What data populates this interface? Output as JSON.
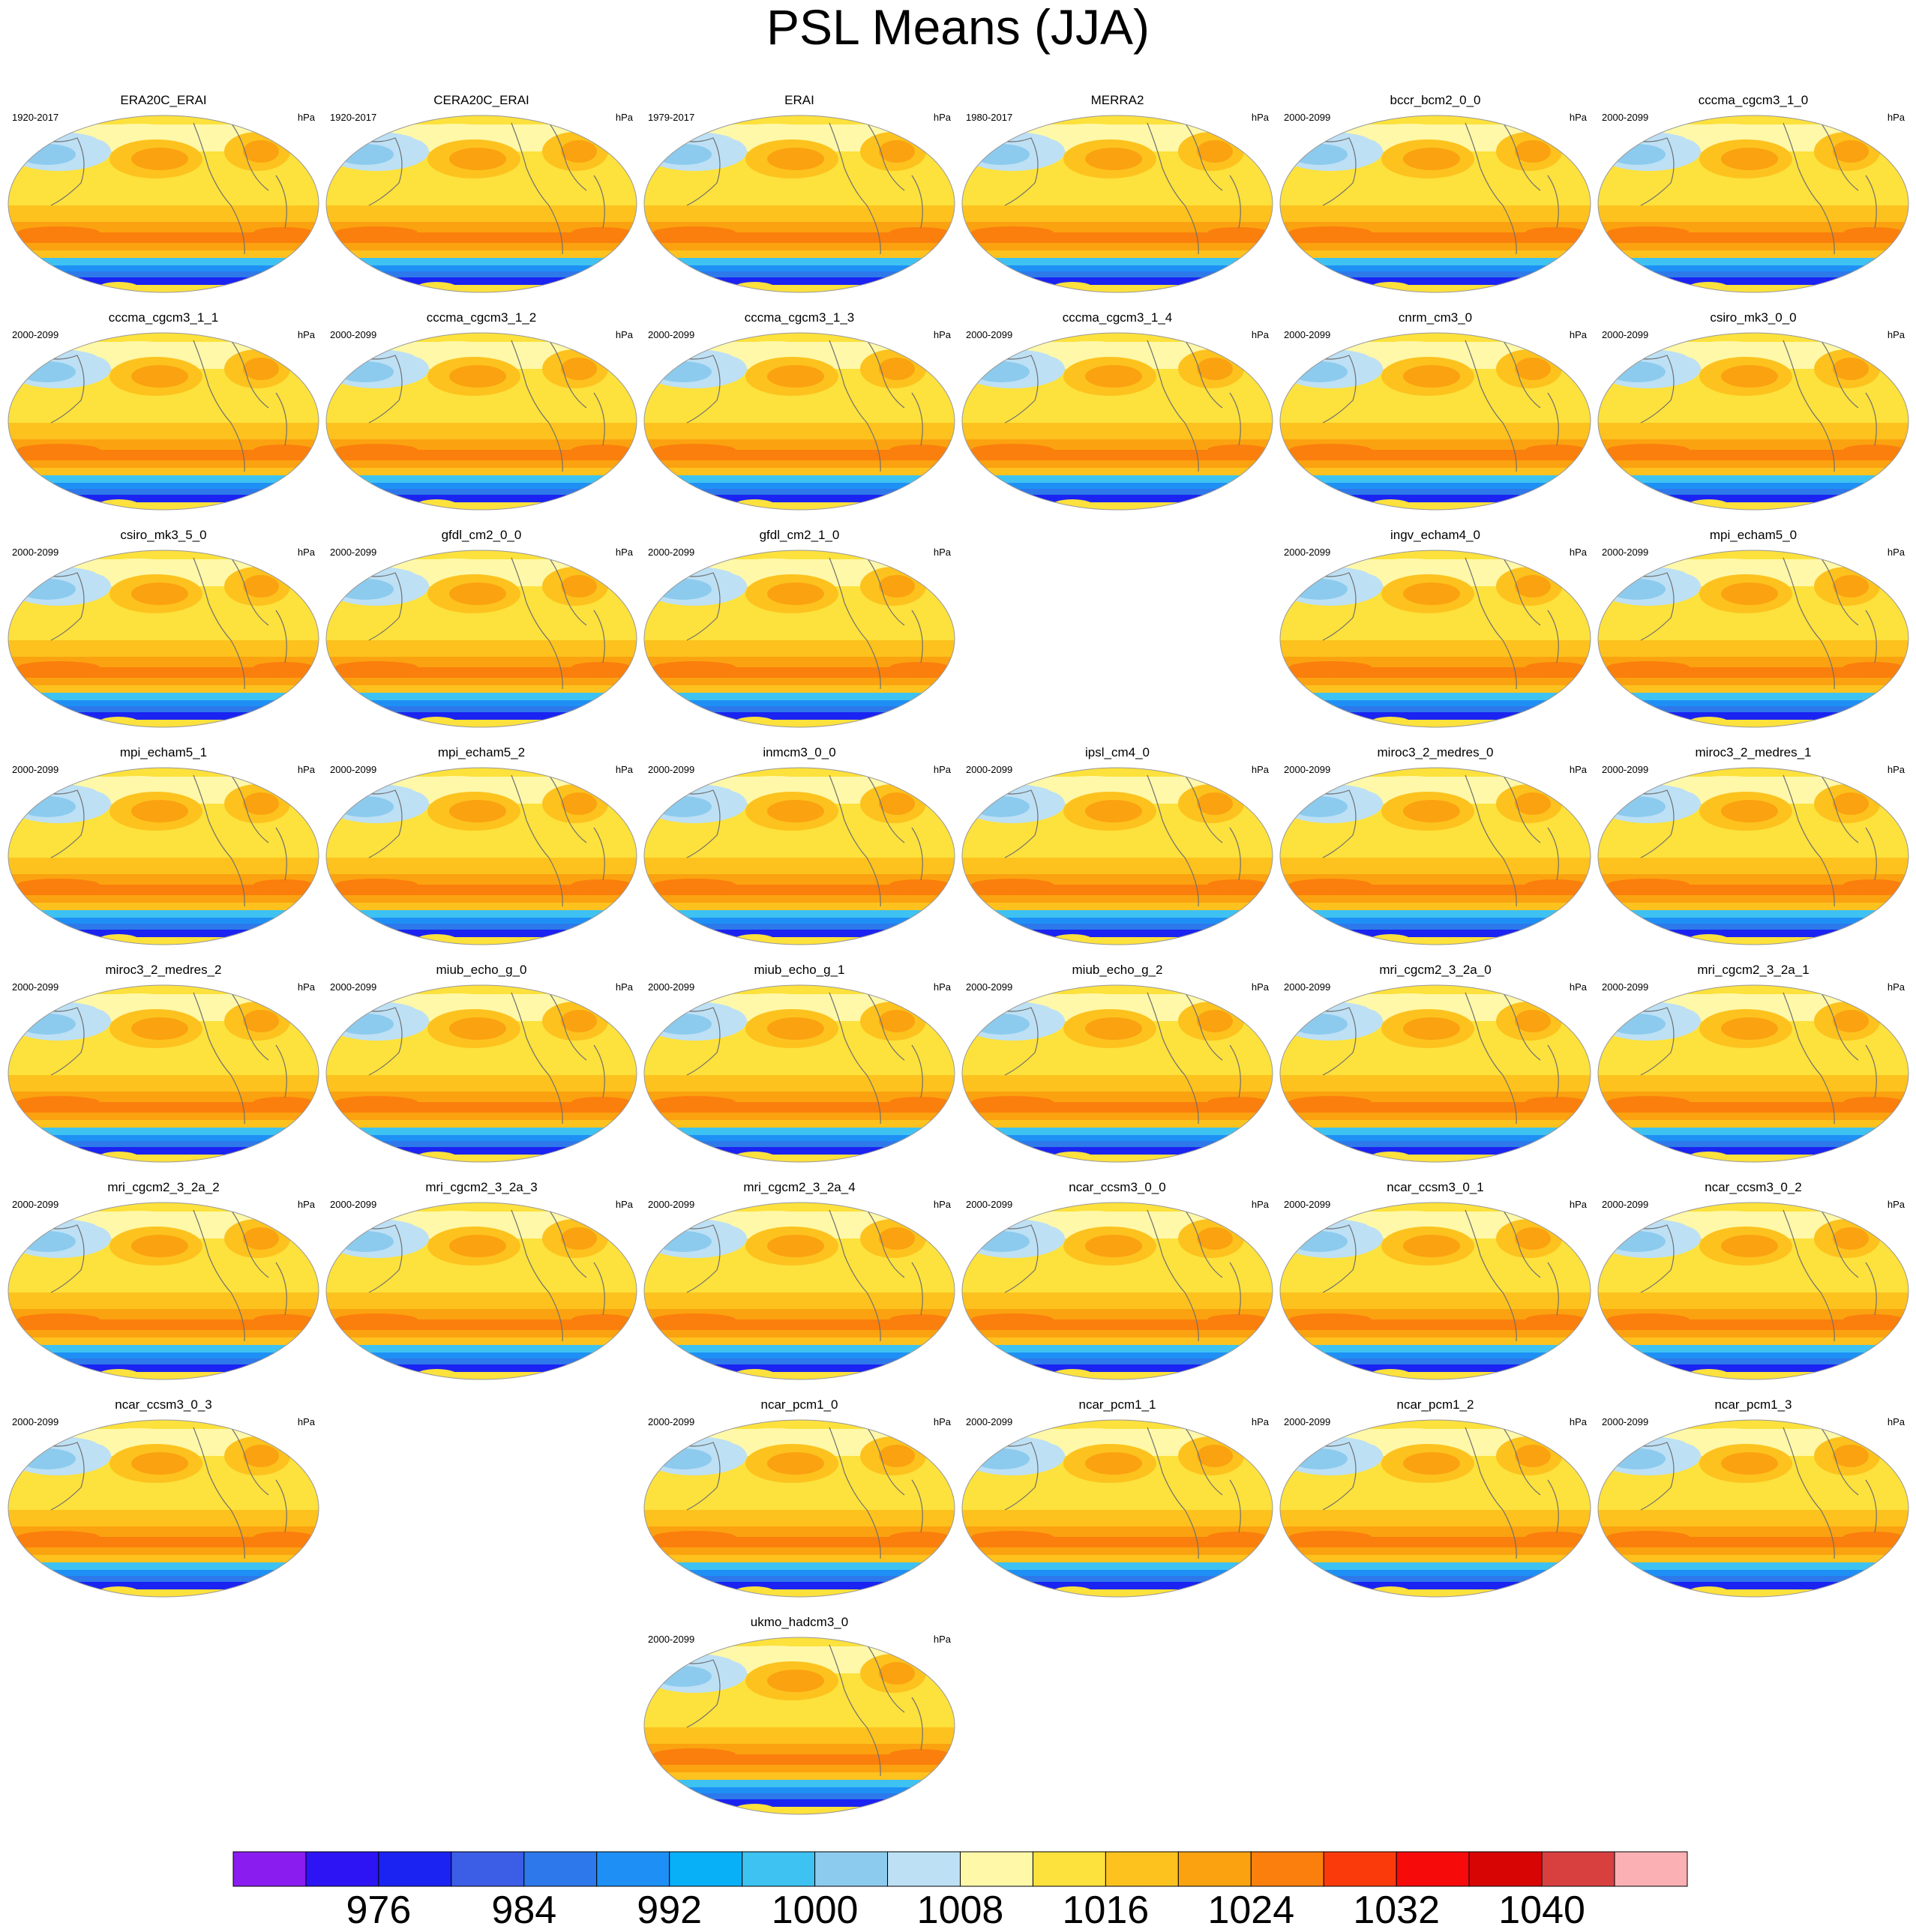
{
  "title": "PSL Means (JJA)",
  "units": "hPa",
  "colorbar": {
    "colors": [
      "#8a1cf0",
      "#2c14f5",
      "#1a23f2",
      "#3c5de6",
      "#2d78ea",
      "#1e90f5",
      "#08b0f7",
      "#3ec2f2",
      "#8ccbee",
      "#bde0f5",
      "#fff8a8",
      "#fde13c",
      "#fdc21e",
      "#fba210",
      "#fb7f0c",
      "#fb3a0c",
      "#f60a0a",
      "#d80505",
      "#d84040",
      "#fbb0b4"
    ],
    "labels": [
      "976",
      "984",
      "992",
      "1000",
      "1008",
      "1016",
      "1024",
      "1032",
      "1040"
    ]
  },
  "panels": [
    {
      "name": "ERA20C_ERAI",
      "years": "1920-2017",
      "units": "hPa",
      "row": 0,
      "col": 0
    },
    {
      "name": "CERA20C_ERAI",
      "years": "1920-2017",
      "units": "hPa",
      "row": 0,
      "col": 1
    },
    {
      "name": "ERAI",
      "years": "1979-2017",
      "units": "hPa",
      "row": 0,
      "col": 2
    },
    {
      "name": "MERRA2",
      "years": "1980-2017",
      "units": "hPa",
      "row": 0,
      "col": 3
    },
    {
      "name": "bccr_bcm2_0_0",
      "years": "2000-2099",
      "units": "hPa",
      "row": 0,
      "col": 4
    },
    {
      "name": "cccma_cgcm3_1_0",
      "years": "2000-2099",
      "units": "hPa",
      "row": 0,
      "col": 5
    },
    {
      "name": "cccma_cgcm3_1_1",
      "years": "2000-2099",
      "units": "hPa",
      "row": 1,
      "col": 0
    },
    {
      "name": "cccma_cgcm3_1_2",
      "years": "2000-2099",
      "units": "hPa",
      "row": 1,
      "col": 1
    },
    {
      "name": "cccma_cgcm3_1_3",
      "years": "2000-2099",
      "units": "hPa",
      "row": 1,
      "col": 2
    },
    {
      "name": "cccma_cgcm3_1_4",
      "years": "2000-2099",
      "units": "hPa",
      "row": 1,
      "col": 3
    },
    {
      "name": "cnrm_cm3_0",
      "years": "2000-2099",
      "units": "hPa",
      "row": 1,
      "col": 4
    },
    {
      "name": "csiro_mk3_0_0",
      "years": "2000-2099",
      "units": "hPa",
      "row": 1,
      "col": 5
    },
    {
      "name": "csiro_mk3_5_0",
      "years": "2000-2099",
      "units": "hPa",
      "row": 2,
      "col": 0
    },
    {
      "name": "gfdl_cm2_0_0",
      "years": "2000-2099",
      "units": "hPa",
      "row": 2,
      "col": 1
    },
    {
      "name": "gfdl_cm2_1_0",
      "years": "2000-2099",
      "units": "hPa",
      "row": 2,
      "col": 2
    },
    {
      "name": "ingv_echam4_0",
      "years": "2000-2099",
      "units": "hPa",
      "row": 2,
      "col": 4
    },
    {
      "name": "mpi_echam5_0",
      "years": "2000-2099",
      "units": "hPa",
      "row": 2,
      "col": 5
    },
    {
      "name": "mpi_echam5_1",
      "years": "2000-2099",
      "units": "hPa",
      "row": 3,
      "col": 0
    },
    {
      "name": "mpi_echam5_2",
      "years": "2000-2099",
      "units": "hPa",
      "row": 3,
      "col": 1
    },
    {
      "name": "inmcm3_0_0",
      "years": "2000-2099",
      "units": "hPa",
      "row": 3,
      "col": 2
    },
    {
      "name": "ipsl_cm4_0",
      "years": "2000-2099",
      "units": "hPa",
      "row": 3,
      "col": 3
    },
    {
      "name": "miroc3_2_medres_0",
      "years": "2000-2099",
      "units": "hPa",
      "row": 3,
      "col": 4
    },
    {
      "name": "miroc3_2_medres_1",
      "years": "2000-2099",
      "units": "hPa",
      "row": 3,
      "col": 5
    },
    {
      "name": "miroc3_2_medres_2",
      "years": "2000-2099",
      "units": "hPa",
      "row": 4,
      "col": 0
    },
    {
      "name": "miub_echo_g_0",
      "years": "2000-2099",
      "units": "hPa",
      "row": 4,
      "col": 1
    },
    {
      "name": "miub_echo_g_1",
      "years": "2000-2099",
      "units": "hPa",
      "row": 4,
      "col": 2
    },
    {
      "name": "miub_echo_g_2",
      "years": "2000-2099",
      "units": "hPa",
      "row": 4,
      "col": 3
    },
    {
      "name": "mri_cgcm2_3_2a_0",
      "years": "2000-2099",
      "units": "hPa",
      "row": 4,
      "col": 4
    },
    {
      "name": "mri_cgcm2_3_2a_1",
      "years": "2000-2099",
      "units": "hPa",
      "row": 4,
      "col": 5
    },
    {
      "name": "mri_cgcm2_3_2a_2",
      "years": "2000-2099",
      "units": "hPa",
      "row": 5,
      "col": 0
    },
    {
      "name": "mri_cgcm2_3_2a_3",
      "years": "2000-2099",
      "units": "hPa",
      "row": 5,
      "col": 1
    },
    {
      "name": "mri_cgcm2_3_2a_4",
      "years": "2000-2099",
      "units": "hPa",
      "row": 5,
      "col": 2
    },
    {
      "name": "ncar_ccsm3_0_0",
      "years": "2000-2099",
      "units": "hPa",
      "row": 5,
      "col": 3
    },
    {
      "name": "ncar_ccsm3_0_1",
      "years": "2000-2099",
      "units": "hPa",
      "row": 5,
      "col": 4
    },
    {
      "name": "ncar_ccsm3_0_2",
      "years": "2000-2099",
      "units": "hPa",
      "row": 5,
      "col": 5
    },
    {
      "name": "ncar_ccsm3_0_3",
      "years": "2000-2099",
      "units": "hPa",
      "row": 6,
      "col": 0
    },
    {
      "name": "ncar_pcm1_0",
      "years": "2000-2099",
      "units": "hPa",
      "row": 6,
      "col": 2
    },
    {
      "name": "ncar_pcm1_1",
      "years": "2000-2099",
      "units": "hPa",
      "row": 6,
      "col": 3
    },
    {
      "name": "ncar_pcm1_2",
      "years": "2000-2099",
      "units": "hPa",
      "row": 6,
      "col": 4
    },
    {
      "name": "ncar_pcm1_3",
      "years": "2000-2099",
      "units": "hPa",
      "row": 6,
      "col": 5
    },
    {
      "name": "ukmo_hadcm3_0",
      "years": "2000-2099",
      "units": "hPa",
      "row": 7,
      "col": 2
    }
  ]
}
